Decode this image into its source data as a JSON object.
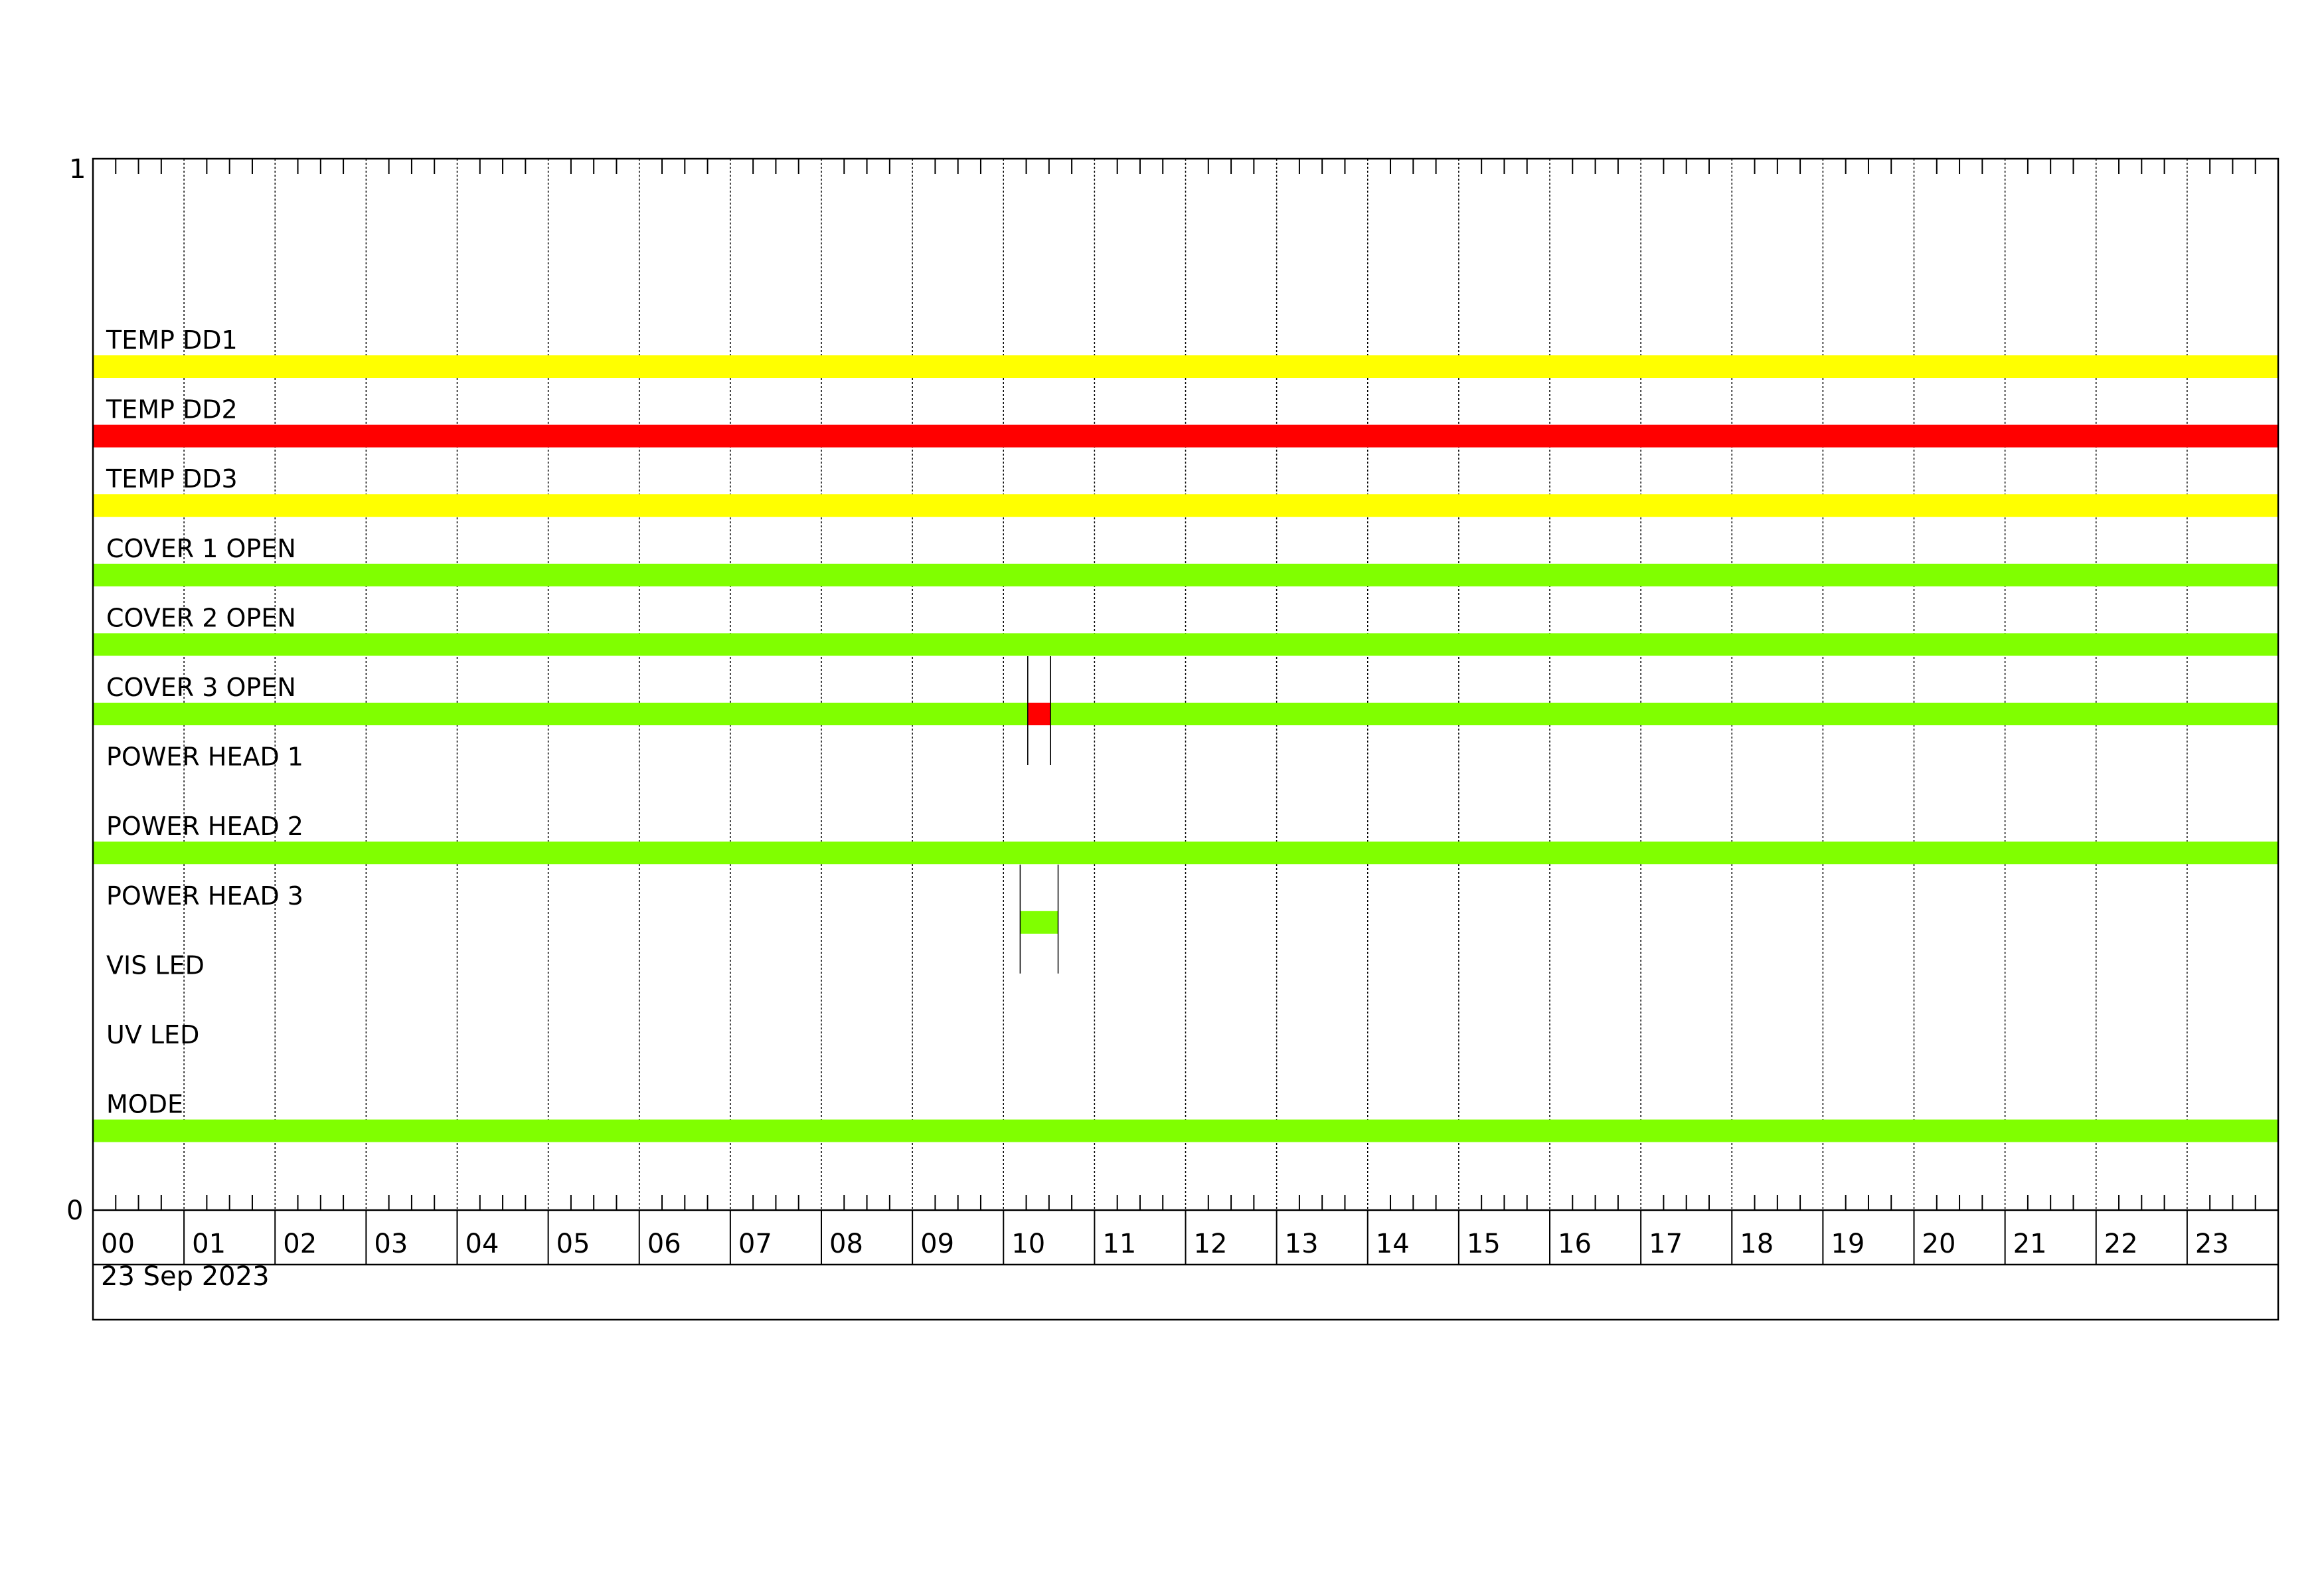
{
  "chart_data": {
    "type": "timeline",
    "date_label": "23 Sep 2023",
    "y_ticks": [
      "1",
      "0"
    ],
    "x_tick_labels": [
      "00",
      "01",
      "02",
      "03",
      "04",
      "05",
      "06",
      "07",
      "08",
      "09",
      "10",
      "11",
      "12",
      "13",
      "14",
      "15",
      "16",
      "17",
      "18",
      "19",
      "20",
      "21",
      "22",
      "23"
    ],
    "x_range_hours": [
      0,
      24
    ],
    "minor_tick_minutes": 15,
    "grid": true,
    "colors": {
      "yellow": "#FFFF00",
      "red": "#FF0000",
      "green": "#80FF00"
    },
    "rows": [
      {
        "label": "TEMP DD1",
        "segments": [
          {
            "start": "00:00",
            "end": "24:00",
            "color": "#FFFF00"
          }
        ]
      },
      {
        "label": "TEMP DD2",
        "segments": [
          {
            "start": "00:00",
            "end": "24:00",
            "color": "#FF0000"
          }
        ]
      },
      {
        "label": "TEMP DD3",
        "segments": [
          {
            "start": "00:00",
            "end": "24:00",
            "color": "#FFFF00"
          }
        ]
      },
      {
        "label": "COVER 1 OPEN",
        "segments": [
          {
            "start": "00:00",
            "end": "24:00",
            "color": "#80FF00"
          }
        ]
      },
      {
        "label": "COVER 2 OPEN",
        "segments": [
          {
            "start": "00:00",
            "end": "24:00",
            "color": "#80FF00"
          }
        ]
      },
      {
        "label": "COVER 3 OPEN",
        "segments": [
          {
            "start": "00:00",
            "end": "10:16",
            "color": "#80FF00"
          },
          {
            "start": "10:16",
            "end": "10:31",
            "color": "#FF0000"
          },
          {
            "start": "10:31",
            "end": "24:00",
            "color": "#80FF00"
          }
        ]
      },
      {
        "label": "POWER HEAD 1",
        "segments": []
      },
      {
        "label": "POWER HEAD 2",
        "segments": [
          {
            "start": "00:00",
            "end": "24:00",
            "color": "#80FF00"
          }
        ]
      },
      {
        "label": "POWER HEAD 3",
        "segments": [
          {
            "start": "10:11",
            "end": "10:36",
            "color": "#80FF00"
          }
        ]
      },
      {
        "label": "VIS LED",
        "segments": []
      },
      {
        "label": "UV LED",
        "segments": []
      },
      {
        "label": "MODE",
        "segments": [
          {
            "start": "00:00",
            "end": "24:00",
            "color": "#80FF00"
          }
        ]
      }
    ]
  }
}
